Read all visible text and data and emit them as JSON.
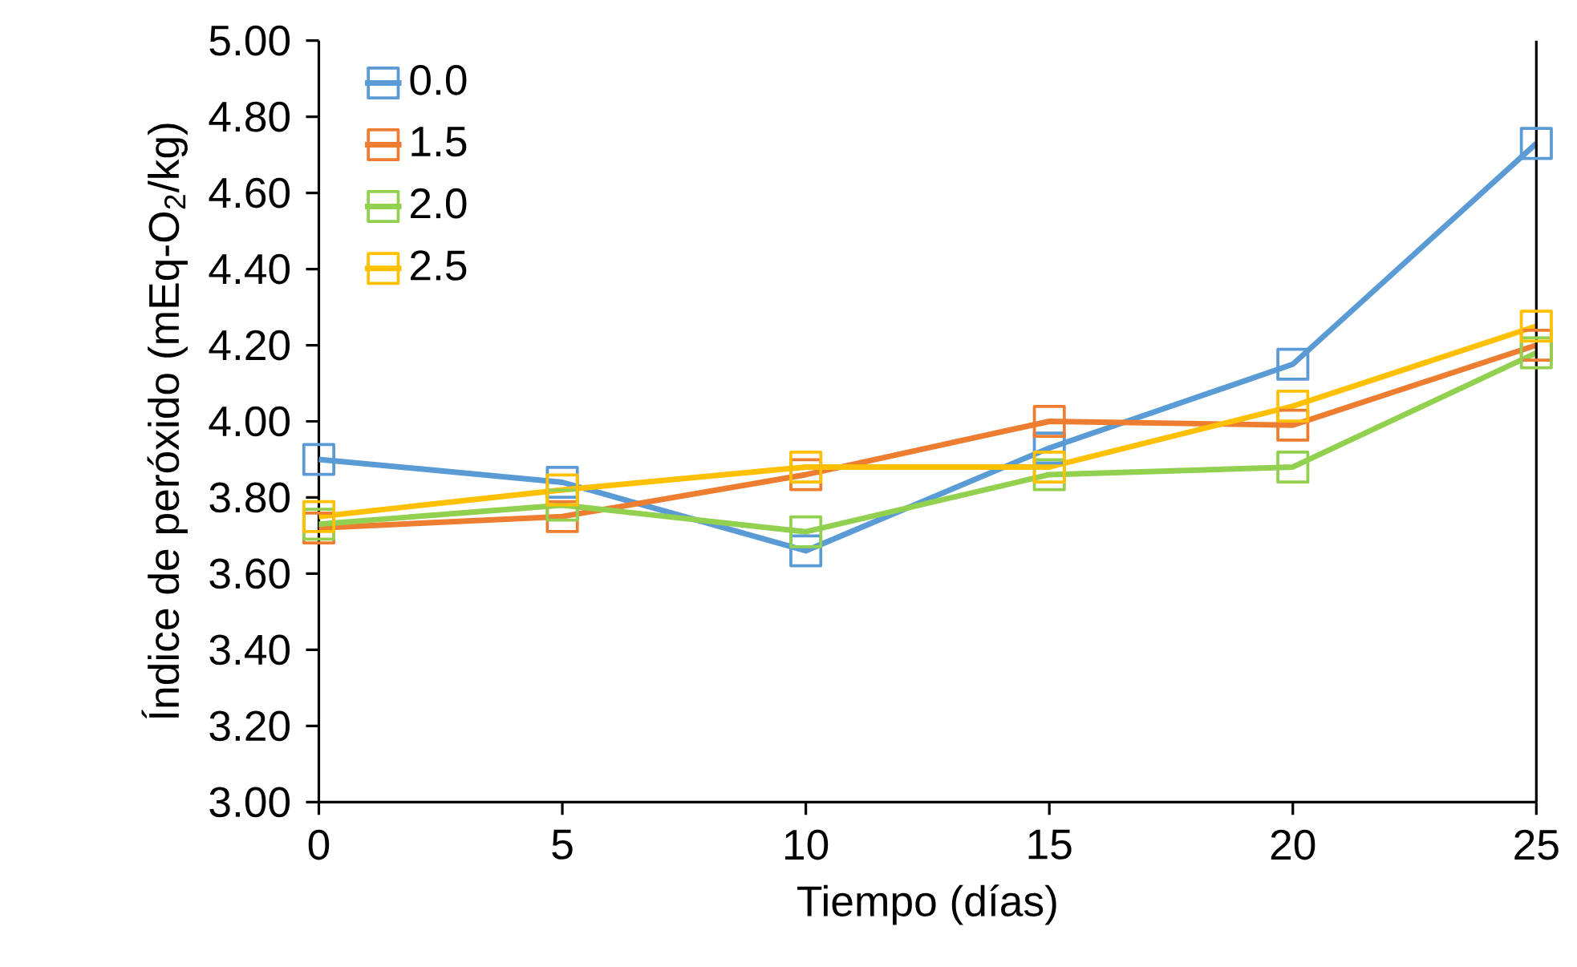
{
  "chart_data": {
    "type": "line",
    "xlabel": "Tiempo (días)",
    "ylabel": "Índice de peróxido (mEq-O$_{2}$/kg)",
    "x": [
      0,
      5,
      10,
      15,
      20,
      25
    ],
    "series": [
      {
        "name": "0.0",
        "color": "#5b9bd5",
        "values": [
          3.9,
          3.84,
          3.66,
          3.93,
          4.15,
          4.73
        ]
      },
      {
        "name": "1.5",
        "color": "#ed7d31",
        "values": [
          3.72,
          3.75,
          3.86,
          4.0,
          3.99,
          4.2
        ]
      },
      {
        "name": "2.0",
        "color": "#92d050",
        "values": [
          3.73,
          3.78,
          3.71,
          3.86,
          3.88,
          4.18
        ]
      },
      {
        "name": "2.5",
        "color": "#ffc000",
        "values": [
          3.75,
          3.82,
          3.88,
          3.88,
          4.04,
          4.25
        ]
      }
    ],
    "xlim": [
      0,
      25
    ],
    "xticks": [
      0,
      5,
      10,
      15,
      20,
      25
    ],
    "ylim": [
      3,
      5
    ],
    "yticks": [
      {
        "value": 3,
        "label": "3.00"
      },
      {
        "value": 3.2,
        "label": "3.20"
      },
      {
        "value": 3.4,
        "label": "3.40"
      },
      {
        "value": 3.6,
        "label": "3.60"
      },
      {
        "value": 3.8,
        "label": "3.80"
      },
      {
        "value": 4,
        "label": "4.00"
      },
      {
        "value": 4.2,
        "label": "4.20"
      },
      {
        "value": 4.4,
        "label": "4.40"
      },
      {
        "value": 4.6,
        "label": "4.60"
      },
      {
        "value": 4.8,
        "label": "4.80"
      },
      {
        "value": 5,
        "label": "5.00"
      }
    ],
    "legend": "top left",
    "marker": "square",
    "line_style": "solid",
    "grid": false
  }
}
